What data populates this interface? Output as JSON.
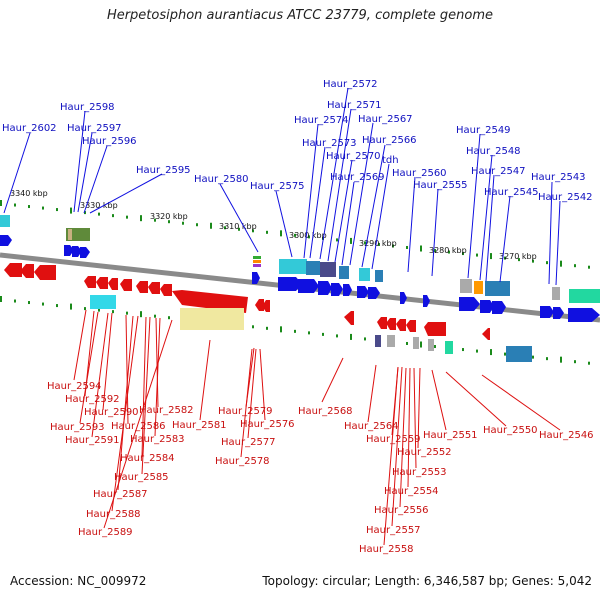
{
  "title": "Herpetosiphon aurantiacus ATCC 23779, complete genome",
  "footer": {
    "accession": "Accession: NC_009972",
    "summary": "Topology: circular; Length: 6,346,587 bp; Genes: 5,042"
  },
  "scale_ticks": [
    "3340 kbp",
    "3330 kbp",
    "3320 kbp",
    "3310 kbp",
    "3300 kbp",
    "3290 kbp",
    "3280 kbp",
    "3270 kbp"
  ],
  "colors": {
    "forward": "#1010e0",
    "reverse": "#e01010",
    "backbone": "#999999",
    "tick": "#1a8a1a"
  },
  "genes_top": [
    "Haur_2602",
    "Haur_2598",
    "Haur_2597",
    "Haur_2596",
    "Haur_2595",
    "Haur_2580",
    "Haur_2575",
    "Haur_2574",
    "Haur_2573",
    "Haur_2572",
    "Haur_2571",
    "Haur_2570",
    "Haur_2569",
    "Haur_2567",
    "Haur_2566",
    "tdh",
    "Haur_2560",
    "Haur_2555",
    "Haur_2549",
    "Haur_2548",
    "Haur_2547",
    "Haur_2545",
    "Haur_2543",
    "Haur_2542"
  ],
  "genes_bottom": [
    "Haur_2594",
    "Haur_2592",
    "Haur_2593",
    "Haur_2590",
    "Haur_2591",
    "Haur_2582",
    "Haur_2586",
    "Haur_2583",
    "Haur_2584",
    "Haur_2585",
    "Haur_2587",
    "Haur_2588",
    "Haur_2589",
    "Haur_2581",
    "Haur_2579",
    "Haur_2576",
    "Haur_2577",
    "Haur_2578",
    "Haur_2568",
    "Haur_2564",
    "Haur_2559",
    "Haur_2552",
    "Haur_2553",
    "Haur_2554",
    "Haur_2556",
    "Haur_2557",
    "Haur_2558",
    "Haur_2551",
    "Haur_2550",
    "Haur_2546"
  ]
}
